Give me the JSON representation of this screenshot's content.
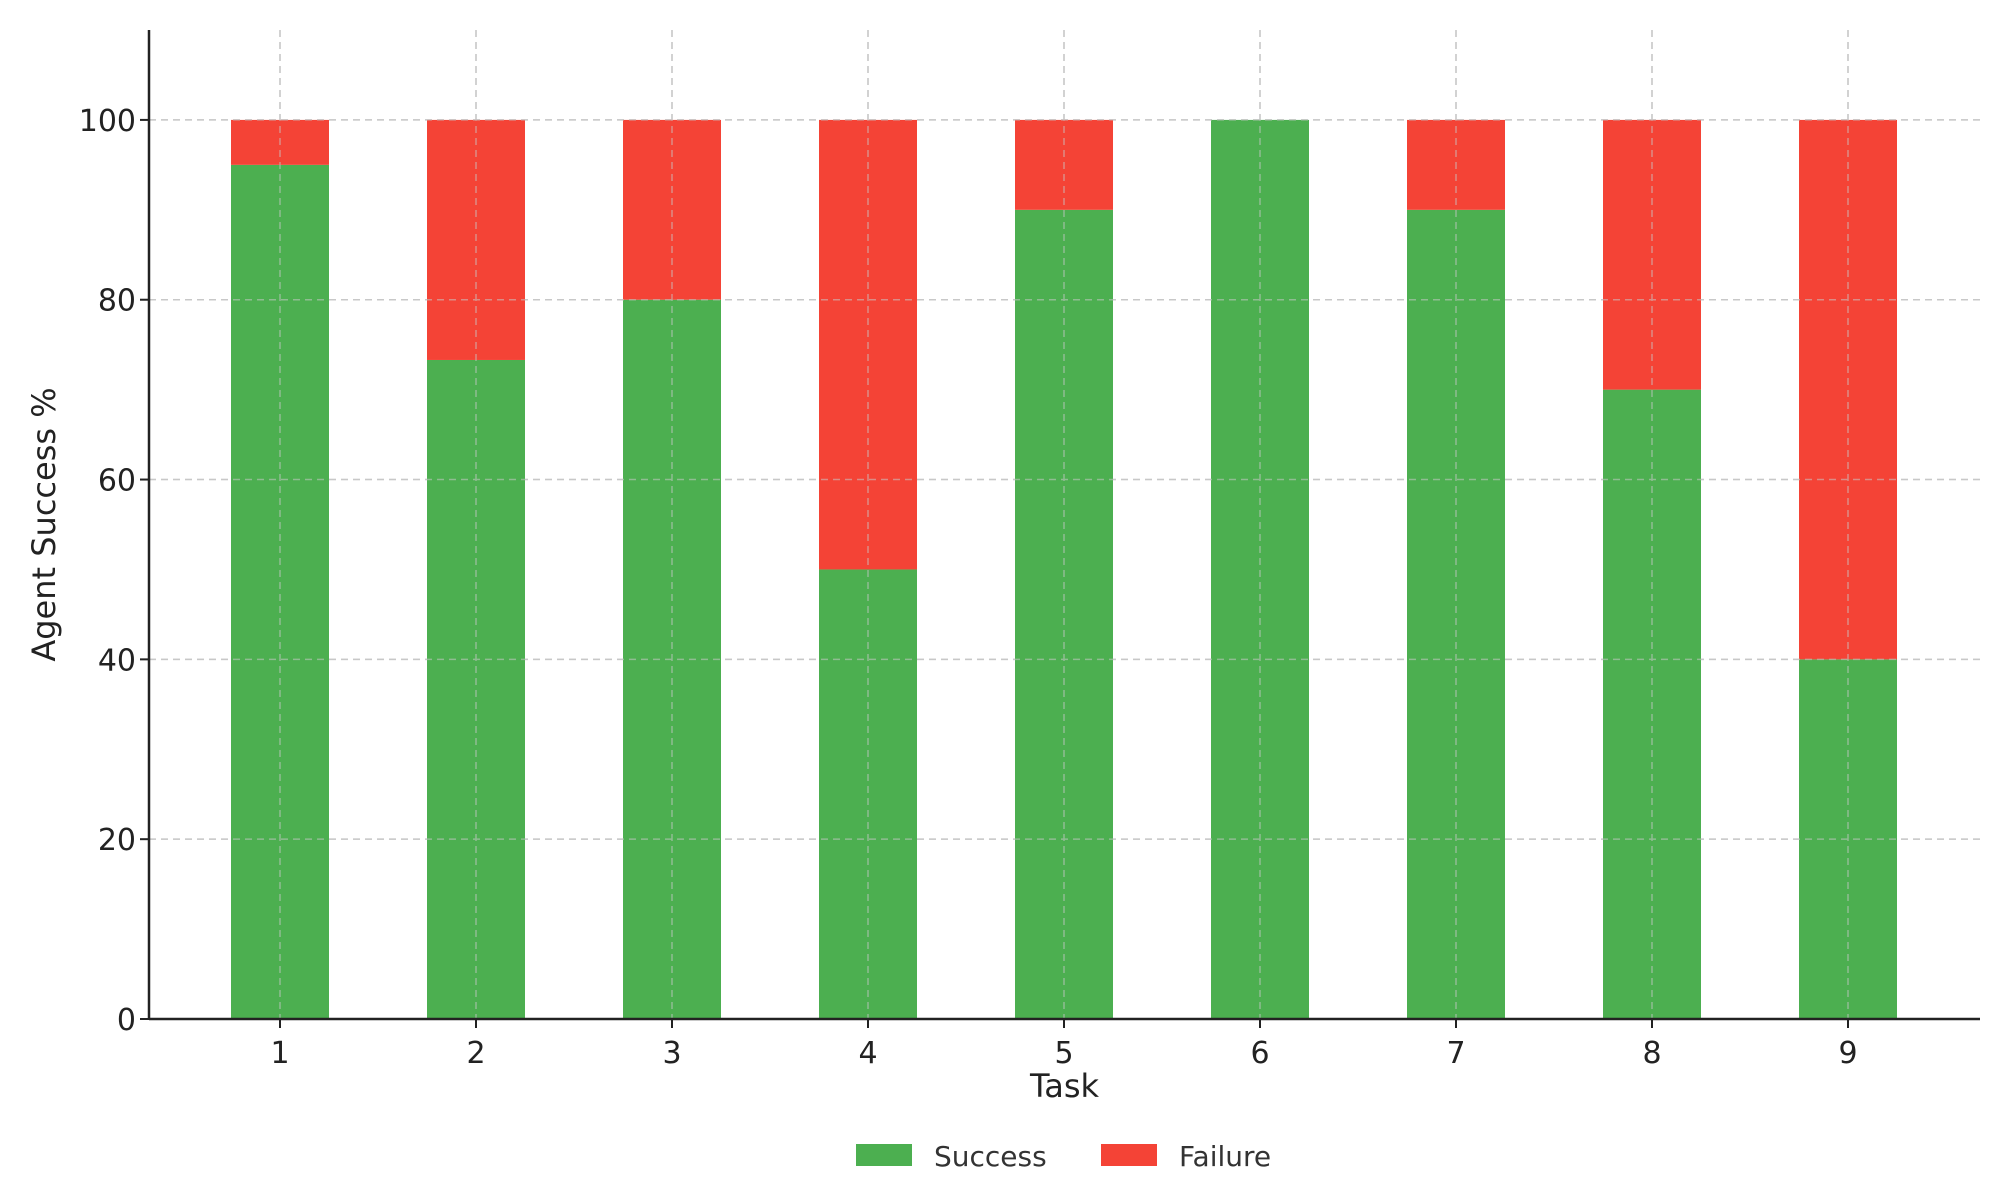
{
  "chart_data": {
    "type": "bar",
    "stacked": true,
    "categories": [
      "1",
      "2",
      "3",
      "4",
      "5",
      "6",
      "7",
      "8",
      "9"
    ],
    "series": [
      {
        "name": "Success",
        "color": "#4caf50",
        "values": [
          95,
          73.3,
          80,
          50,
          90,
          100,
          90,
          70,
          40
        ]
      },
      {
        "name": "Failure",
        "color": "#f44336",
        "values": [
          5,
          26.7,
          20,
          50,
          10,
          0,
          10,
          30,
          60
        ]
      }
    ],
    "title": "",
    "xlabel": "Task",
    "ylabel": "Agent Success %",
    "ylim": [
      0,
      110
    ],
    "yticks": [
      0,
      20,
      40,
      60,
      80,
      100
    ],
    "grid": true,
    "legend_position": "bottom-center"
  }
}
